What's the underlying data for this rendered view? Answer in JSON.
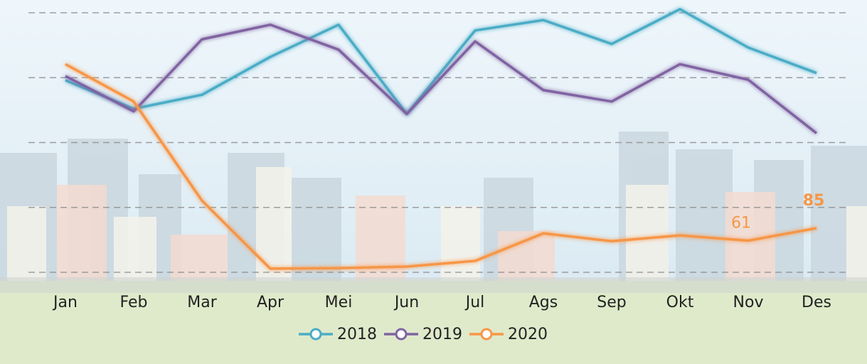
{
  "chart_data": {
    "type": "line",
    "categories": [
      "Jan",
      "Feb",
      "Mar",
      "Apr",
      "Mei",
      "Jun",
      "Jul",
      "Ags",
      "Sep",
      "Okt",
      "Nov",
      "Des"
    ],
    "series": [
      {
        "name": "2018",
        "color": "#4bacc6",
        "values": [
          370,
          315,
          342,
          415,
          477,
          305,
          466,
          486,
          440,
          507,
          433,
          384
        ]
      },
      {
        "name": "2019",
        "color": "#8064a2",
        "values": [
          378,
          310,
          449,
          477,
          429,
          305,
          445,
          351,
          329,
          401,
          371,
          268
        ]
      },
      {
        "name": "2020",
        "color": "#f79646",
        "values": [
          401,
          329,
          138,
          7,
          8,
          11,
          22,
          75,
          60,
          71,
          61,
          85
        ],
        "labeled_points": [
          10,
          11
        ]
      }
    ],
    "ylim": [
      0,
      520
    ],
    "yticks": [
      0,
      125,
      250,
      375,
      500
    ],
    "grid": true
  }
}
